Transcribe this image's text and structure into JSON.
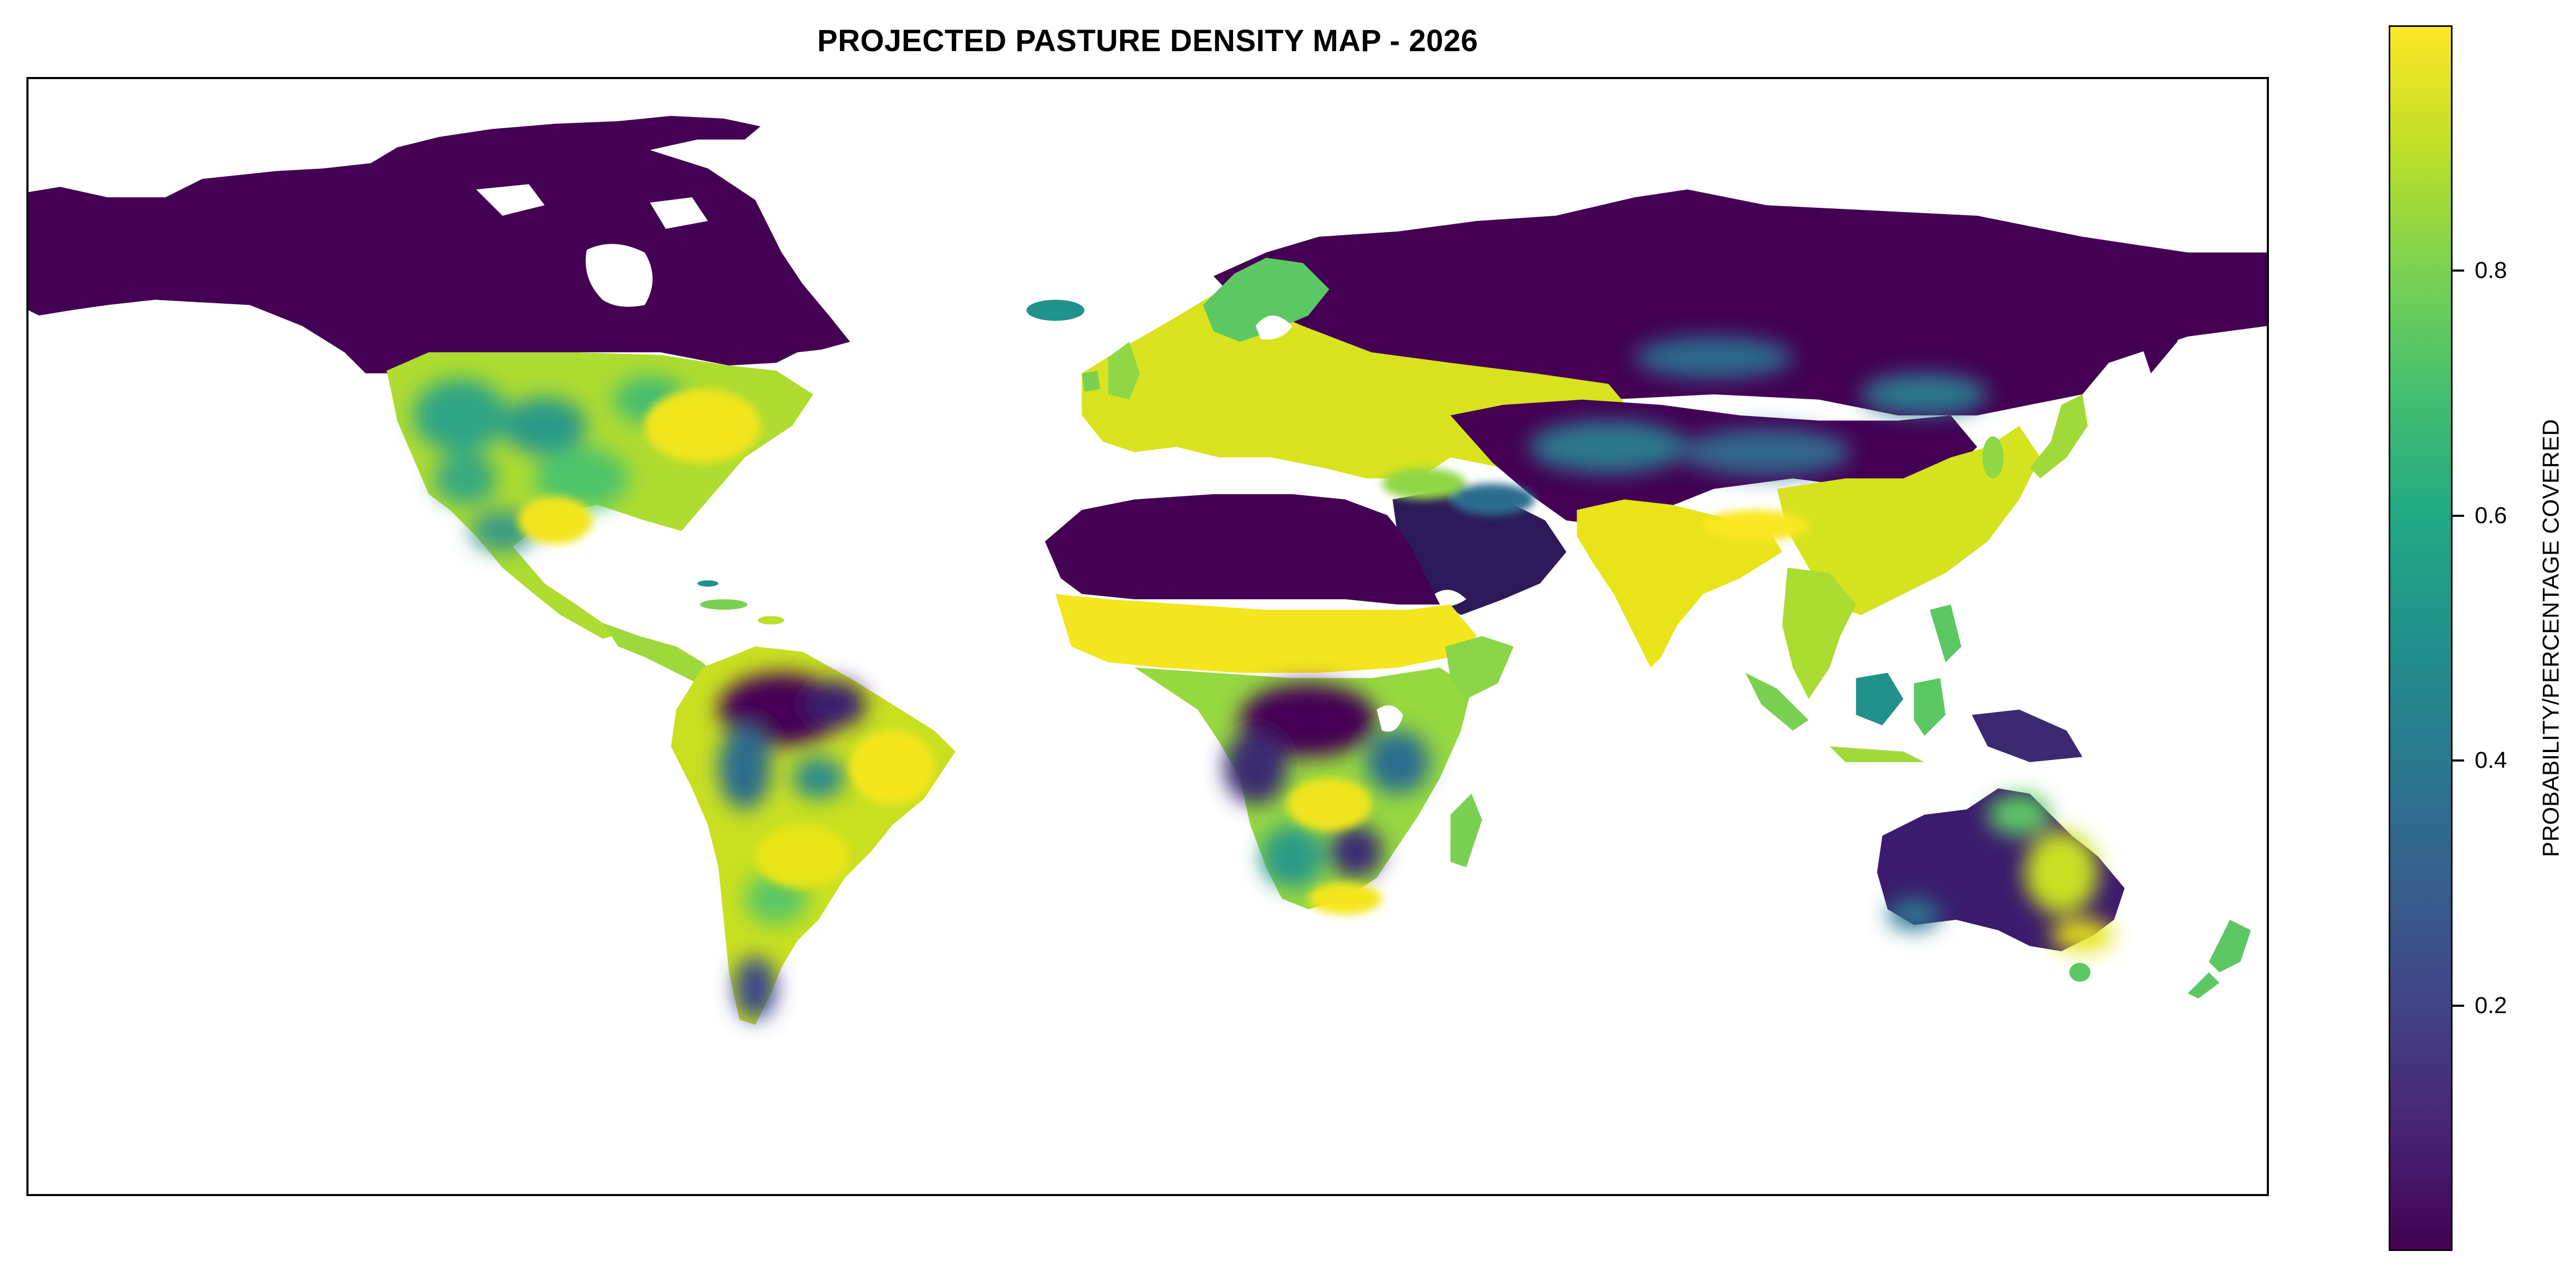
{
  "title": "PROJECTED PASTURE DENSITY MAP - 2026",
  "colorbar": {
    "label": "PROBABILITY/PERCENTAGE COVERED",
    "ticks": [
      "0.2",
      "0.4",
      "0.6",
      "0.8"
    ],
    "colormap": "viridis",
    "range": [
      0,
      1
    ]
  },
  "colors": {
    "low": "#440154",
    "mid": "#21918c",
    "high": "#fde725"
  }
}
